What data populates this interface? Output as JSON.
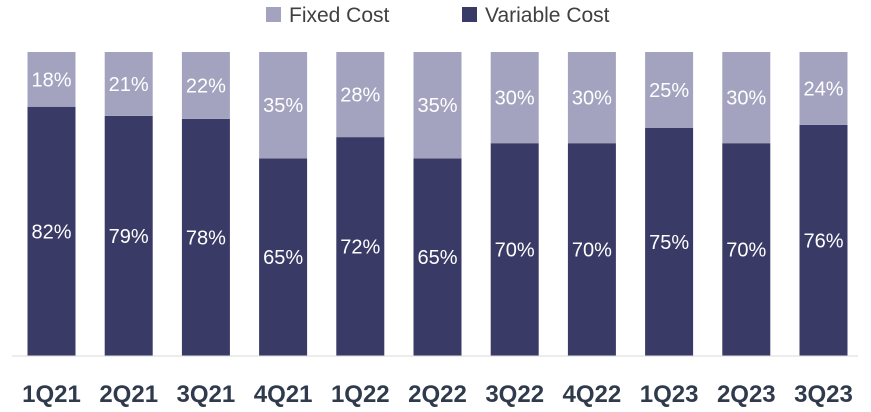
{
  "colors": {
    "fixed": "#a3a3c0",
    "variable": "#393a66",
    "axis": "#d9d9d9"
  },
  "chart_data": {
    "type": "bar",
    "stacked": true,
    "title": "",
    "xlabel": "",
    "ylabel": "",
    "ylim": [
      0,
      100
    ],
    "grid": false,
    "legend_position": "top",
    "categories": [
      "1Q21",
      "2Q21",
      "3Q21",
      "4Q21",
      "1Q22",
      "2Q22",
      "3Q22",
      "4Q22",
      "1Q23",
      "2Q23",
      "3Q23"
    ],
    "series": [
      {
        "name": "Variable Cost",
        "values": [
          82,
          79,
          78,
          65,
          72,
          65,
          70,
          70,
          75,
          70,
          76
        ],
        "labels": [
          "82%",
          "79%",
          "78%",
          "65%",
          "72%",
          "65%",
          "70%",
          "70%",
          "75%",
          "70%",
          "76%"
        ]
      },
      {
        "name": "Fixed Cost",
        "values": [
          18,
          21,
          22,
          35,
          28,
          35,
          30,
          30,
          25,
          30,
          24
        ],
        "labels": [
          "18%",
          "21%",
          "22%",
          "35%",
          "28%",
          "35%",
          "30%",
          "30%",
          "25%",
          "30%",
          "24%"
        ]
      }
    ],
    "legend": [
      "Fixed Cost",
      "Variable Cost"
    ]
  }
}
